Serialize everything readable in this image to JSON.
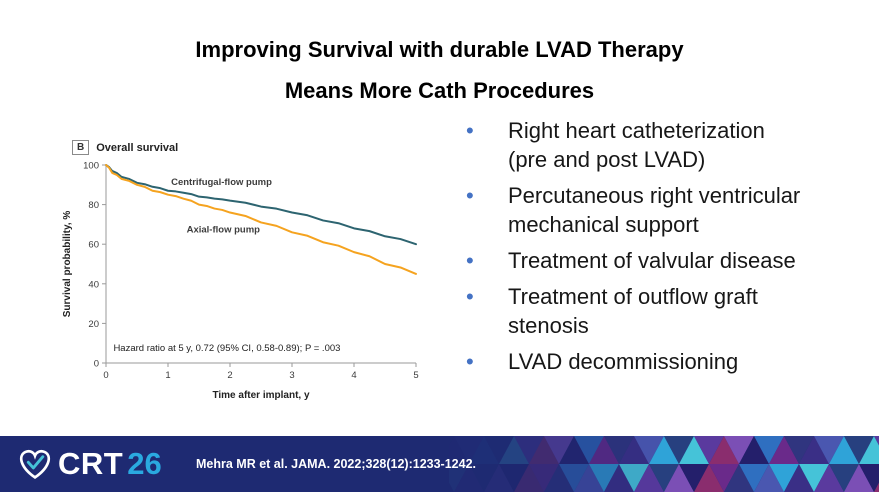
{
  "slide": {
    "title_line1": "Improving Survival with durable LVAD Therapy",
    "title_line2": "Means More Cath Procedures",
    "bullet_color": "#4472c4",
    "bullets": [
      "Right heart catheterization (pre and post LVAD)",
      "Percutaneous right ventricular mechanical support",
      "Treatment of valvular disease",
      "Treatment of outflow graft stenosis",
      "LVAD decommissioning"
    ]
  },
  "chart_data": {
    "type": "line",
    "panel_label": "B",
    "title": "Overall survival",
    "xlabel": "Time after implant, y",
    "ylabel": "Survival probability, %",
    "xlim": [
      0,
      5
    ],
    "ylim": [
      0,
      100
    ],
    "xticks": [
      0,
      1,
      2,
      3,
      4,
      5
    ],
    "yticks": [
      0,
      20,
      40,
      60,
      80,
      100
    ],
    "grid": false,
    "legend": "inline-labels",
    "annotation": "Hazard ratio at 5 y, 0.72 (95% CI, 0.58-0.89); P = .003",
    "series": [
      {
        "name": "Centrifugal-flow pump",
        "color": "#2d6470",
        "x": [
          0,
          0.1,
          0.25,
          0.5,
          0.75,
          1,
          1.25,
          1.5,
          1.75,
          2,
          2.5,
          3,
          3.5,
          4,
          4.5,
          5
        ],
        "y": [
          100,
          97,
          94,
          91,
          89,
          87,
          86,
          84,
          83,
          82,
          79,
          76,
          72,
          68,
          64,
          60
        ],
        "label_anchor": {
          "x": 1.05,
          "y": 90
        }
      },
      {
        "name": "Axial-flow pump",
        "color": "#f5a31f",
        "x": [
          0,
          0.1,
          0.25,
          0.5,
          0.75,
          1,
          1.25,
          1.5,
          1.75,
          2,
          2.5,
          3,
          3.5,
          4,
          4.5,
          5
        ],
        "y": [
          100,
          96,
          93,
          90,
          87,
          85,
          83,
          80,
          78,
          76,
          71,
          66,
          61,
          56,
          50,
          45
        ],
        "label_anchor": {
          "x": 1.3,
          "y": 66
        }
      }
    ]
  },
  "footer": {
    "logo_text": "CRT",
    "logo_year": "26",
    "citation": "Mehra MR et al. JAMA. 2022;328(12):1233-1242.",
    "bar_color": "#1e2a72",
    "year_color": "#2aa9e0",
    "heart_color": "#45c3d8",
    "mosaic_colors": [
      "#3a2f86",
      "#5a3a9e",
      "#7b4fb5",
      "#2f6fc0",
      "#2fa3d8",
      "#45c3d8",
      "#8a2d6e",
      "#30357f",
      "#4a57b0",
      "#27407f",
      "#241f6b",
      "#6a2a8a"
    ]
  }
}
